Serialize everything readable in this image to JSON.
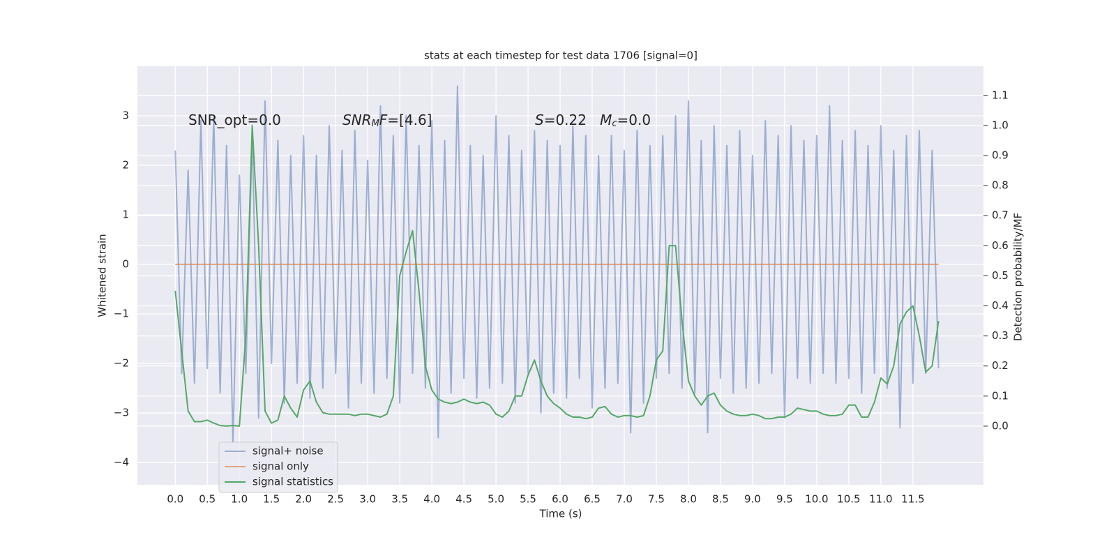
{
  "chart_data": {
    "type": "line",
    "title": "stats at each timestep for test data 1706 [signal=0]",
    "xlabel": "Time (s)",
    "ylabel": "Whitened strain",
    "y2label": "Detection probability/MF",
    "x": [
      0,
      0.1,
      0.2,
      0.3,
      0.4,
      0.5,
      0.6,
      0.7,
      0.8,
      0.9,
      1,
      1.1,
      1.2,
      1.3,
      1.4,
      1.5,
      1.6,
      1.7,
      1.8,
      1.9,
      2,
      2.1,
      2.2,
      2.3,
      2.4,
      2.5,
      2.6,
      2.7,
      2.8,
      2.9,
      3,
      3.1,
      3.2,
      3.3,
      3.4,
      3.5,
      3.6,
      3.7,
      3.8,
      3.9,
      4,
      4.1,
      4.2,
      4.3,
      4.4,
      4.5,
      4.6,
      4.7,
      4.8,
      4.9,
      5,
      5.1,
      5.2,
      5.3,
      5.4,
      5.5,
      5.6,
      5.7,
      5.8,
      5.9,
      6,
      6.1,
      6.2,
      6.3,
      6.4,
      6.5,
      6.6,
      6.7,
      6.8,
      6.9,
      7,
      7.1,
      7.2,
      7.3,
      7.4,
      7.5,
      7.6,
      7.7,
      7.8,
      7.9,
      8,
      8.1,
      8.2,
      8.3,
      8.4,
      8.5,
      8.6,
      8.7,
      8.8,
      8.9,
      9,
      9.1,
      9.2,
      9.3,
      9.4,
      9.5,
      9.6,
      9.7,
      9.8,
      9.9,
      10,
      10.1,
      10.2,
      10.3,
      10.4,
      10.5,
      10.6,
      10.7,
      10.8,
      10.9,
      11,
      11.1,
      11.2,
      11.3,
      11.4,
      11.5,
      11.6,
      11.7,
      11.8,
      11.9
    ],
    "series": [
      {
        "name": "signal+ noise",
        "color": "#4c72b0",
        "opacity": 0.5,
        "values": [
          2.3,
          -2.2,
          1.9,
          -2.4,
          2.9,
          -2.1,
          3.0,
          -2.6,
          2.4,
          -3.6,
          1.8,
          -2.2,
          2.6,
          -3.1,
          3.3,
          -2.0,
          2.5,
          -2.8,
          2.2,
          -2.4,
          2.6,
          -2.7,
          2.2,
          -2.5,
          2.8,
          -2.2,
          2.3,
          -2.9,
          2.7,
          -2.4,
          2.1,
          -2.6,
          3.2,
          -2.3,
          2.6,
          -2.8,
          3.0,
          -2.2,
          2.4,
          -2.5,
          2.9,
          -3.5,
          2.5,
          -2.6,
          3.6,
          -2.3,
          2.4,
          -2.7,
          2.2,
          -2.5,
          3.0,
          -2.4,
          2.6,
          -2.8,
          2.3,
          -2.2,
          2.7,
          -3.0,
          2.5,
          -2.6,
          2.4,
          -2.7,
          2.8,
          -2.3,
          2.6,
          -2.9,
          2.2,
          -2.5,
          2.6,
          -2.4,
          2.3,
          -3.4,
          2.7,
          -2.8,
          2.4,
          -2.3,
          2.6,
          -2.2,
          3.0,
          -2.5,
          3.3,
          -2.6,
          2.5,
          -3.4,
          2.8,
          -2.3,
          2.4,
          -2.6,
          2.7,
          -2.5,
          2.2,
          -2.4,
          2.9,
          -2.2,
          2.6,
          -3.1,
          2.8,
          -2.3,
          2.5,
          -2.4,
          2.6,
          -2.2,
          3.2,
          -2.4,
          2.5,
          -2.3,
          2.7,
          -2.6,
          2.4,
          -2.2,
          2.8,
          -2.5,
          2.3,
          -3.3,
          2.6,
          -2.4,
          2.7,
          -2.2,
          2.3,
          -2.1
        ]
      },
      {
        "name": "signal only",
        "color": "#dd8452",
        "opacity": 0.7,
        "values": [
          0,
          0,
          0,
          0,
          0,
          0,
          0,
          0,
          0,
          0,
          0,
          0,
          0,
          0,
          0,
          0,
          0,
          0,
          0,
          0,
          0,
          0,
          0,
          0,
          0,
          0,
          0,
          0,
          0,
          0,
          0,
          0,
          0,
          0,
          0,
          0,
          0,
          0,
          0,
          0,
          0,
          0,
          0,
          0,
          0,
          0,
          0,
          0,
          0,
          0,
          0,
          0,
          0,
          0,
          0,
          0,
          0,
          0,
          0,
          0,
          0,
          0,
          0,
          0,
          0,
          0,
          0,
          0,
          0,
          0,
          0,
          0,
          0,
          0,
          0,
          0,
          0,
          0,
          0,
          0,
          0,
          0,
          0,
          0,
          0,
          0,
          0,
          0,
          0,
          0,
          0,
          0,
          0,
          0,
          0,
          0,
          0,
          0,
          0,
          0,
          0,
          0,
          0,
          0,
          0,
          0,
          0,
          0,
          0,
          0,
          0,
          0,
          0,
          0,
          0,
          0,
          0,
          0,
          0,
          0
        ]
      },
      {
        "name": "signal statistics",
        "color": "#55a868",
        "opacity": 1,
        "axis": "y2",
        "values": [
          0.45,
          0.25,
          0.05,
          0.015,
          0.015,
          0.02,
          0.01,
          0.002,
          0.0,
          0.002,
          0.0,
          0.3,
          1.0,
          0.6,
          0.05,
          0.01,
          0.02,
          0.1,
          0.06,
          0.03,
          0.12,
          0.15,
          0.08,
          0.045,
          0.04,
          0.04,
          0.04,
          0.04,
          0.035,
          0.04,
          0.04,
          0.035,
          0.03,
          0.04,
          0.1,
          0.5,
          0.58,
          0.65,
          0.45,
          0.2,
          0.12,
          0.09,
          0.08,
          0.075,
          0.08,
          0.09,
          0.08,
          0.075,
          0.08,
          0.07,
          0.04,
          0.03,
          0.05,
          0.1,
          0.1,
          0.17,
          0.22,
          0.15,
          0.1,
          0.075,
          0.06,
          0.04,
          0.03,
          0.03,
          0.025,
          0.03,
          0.06,
          0.065,
          0.04,
          0.03,
          0.035,
          0.035,
          0.03,
          0.035,
          0.1,
          0.22,
          0.25,
          0.6,
          0.6,
          0.35,
          0.15,
          0.1,
          0.07,
          0.1,
          0.11,
          0.07,
          0.05,
          0.04,
          0.035,
          0.035,
          0.04,
          0.035,
          0.025,
          0.025,
          0.03,
          0.03,
          0.04,
          0.06,
          0.055,
          0.05,
          0.05,
          0.04,
          0.035,
          0.035,
          0.04,
          0.07,
          0.07,
          0.03,
          0.03,
          0.08,
          0.16,
          0.14,
          0.2,
          0.34,
          0.38,
          0.4,
          0.3,
          0.18,
          0.2,
          0.35
        ]
      }
    ],
    "xlim": [
      -0.59,
      12.6
    ],
    "xticks": [
      {
        "value": 0,
        "label": "0.0"
      },
      0.5,
      {
        "value": 1,
        "label": "1.0"
      },
      1.5,
      {
        "value": 2,
        "label": "2.0"
      },
      2.5,
      {
        "value": 3,
        "label": "3.0"
      },
      3.5,
      {
        "value": 4,
        "label": "4.0"
      },
      4.5,
      {
        "value": 5,
        "label": "5.0"
      },
      5.5,
      {
        "value": 6,
        "label": "6.0"
      },
      6.5,
      {
        "value": 7,
        "label": "7.0"
      },
      7.5,
      {
        "value": 8,
        "label": "8.0"
      },
      8.5,
      {
        "value": 9,
        "label": "9.0"
      },
      9.5,
      {
        "value": 10,
        "label": "10.0"
      },
      10.5,
      {
        "value": 11,
        "label": "11.0"
      },
      11.5
    ],
    "ylim": [
      -4.45,
      4.0
    ],
    "yticks": [
      {
        "value": -4,
        "label": "−4"
      },
      {
        "value": -3,
        "label": "−3"
      },
      {
        "value": -2,
        "label": "−2"
      },
      {
        "value": -1,
        "label": "−1"
      },
      0,
      1,
      2,
      3
    ],
    "y2lim": [
      -0.195,
      1.197
    ],
    "y2ticks": [
      {
        "value": 0,
        "label": "0.0"
      },
      0.1,
      0.2,
      0.3,
      0.4,
      0.5,
      0.6,
      0.7,
      0.8,
      0.9,
      {
        "value": 1,
        "label": "1.0"
      },
      1.1
    ],
    "grid": true,
    "legend": "lower left",
    "annotations": [
      [
        {
          "text": "SNR_opt=0.0"
        }
      ],
      [
        {
          "text": "SNR",
          "style": "italic"
        },
        {
          "text": "M",
          "style": "sub"
        },
        {
          "text": "F",
          "style": "italic"
        },
        {
          "text": "=[4.6]"
        }
      ],
      [
        {
          "text": "S",
          "style": "italic"
        },
        {
          "text": "=0.22   "
        },
        {
          "text": "M",
          "style": "italic"
        },
        {
          "text": "c",
          "style": "sub"
        },
        {
          "text": "=0.0"
        }
      ]
    ]
  }
}
